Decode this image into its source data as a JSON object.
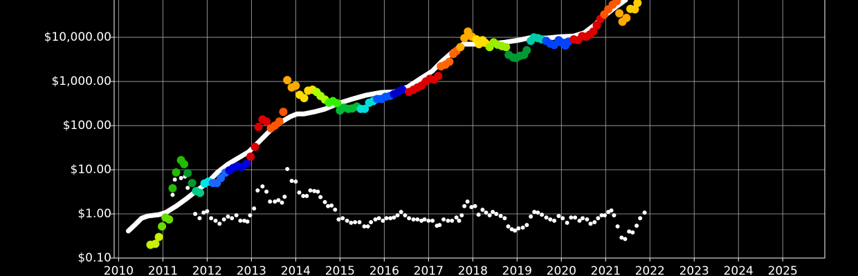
{
  "chart_data": {
    "type": "scatter",
    "background": "#000000",
    "grid": true,
    "log_y": true,
    "xlim": [
      2009.9,
      2025.95
    ],
    "xticks": [
      2010,
      2011,
      2012,
      2013,
      2014,
      2015,
      2016,
      2017,
      2018,
      2019,
      2020,
      2021,
      2022,
      2023,
      2024,
      2025
    ],
    "ylim": [
      0.1,
      70000
    ],
    "yticks": [
      {
        "value": 0.1,
        "label": "$0.10"
      },
      {
        "value": 1,
        "label": "$1.00"
      },
      {
        "value": 10,
        "label": "$10.00"
      },
      {
        "value": 100,
        "label": "$100.00"
      },
      {
        "value": 1000,
        "label": "$1,000.00"
      },
      {
        "value": 10000,
        "label": "$10,000.00"
      }
    ],
    "moving_average": {
      "color": "#ffffff",
      "x": [
        2010.22,
        2010.38,
        2010.52,
        2010.67,
        2010.91,
        2011.06,
        2011.3,
        2011.53,
        2011.77,
        2012.0,
        2012.23,
        2012.47,
        2012.7,
        2012.94,
        2013.17,
        2013.41,
        2013.64,
        2013.88,
        2014.03,
        2014.19,
        2014.42,
        2014.66,
        2014.97,
        2015.28,
        2015.59,
        2015.91,
        2016.22,
        2016.53,
        2016.84,
        2017.08,
        2017.31,
        2017.55,
        2017.78,
        2018.09,
        2018.41,
        2018.72,
        2019.03,
        2019.34,
        2019.66,
        2019.97,
        2020.28,
        2020.52,
        2020.75,
        2020.98,
        2021.22,
        2021.45
      ],
      "values": [
        0.41,
        0.58,
        0.8,
        0.9,
        0.96,
        1.07,
        1.5,
        2.2,
        3.4,
        5,
        8.7,
        13.4,
        18.4,
        25.5,
        43,
        75,
        115,
        160,
        184,
        184,
        205,
        237,
        320,
        400,
        490,
        560,
        580,
        750,
        1200,
        1700,
        2900,
        4700,
        7000,
        7000,
        7200,
        7700,
        8600,
        10000,
        9600,
        10300,
        10700,
        12700,
        19000,
        31000,
        48000,
        70000
      ]
    },
    "ratio": {
      "color": "#ffffff",
      "x": [
        2011.22,
        2011.27,
        2011.41,
        2011.5,
        2011.56,
        2011.73,
        2011.83,
        2011.92,
        2012.0,
        2012.09,
        2012.19,
        2012.28,
        2012.38,
        2012.47,
        2012.56,
        2012.66,
        2012.75,
        2012.84,
        2012.91,
        2012.97,
        2013.06,
        2013.14,
        2013.25,
        2013.34,
        2013.42,
        2013.53,
        2013.61,
        2013.69,
        2013.75,
        2013.81,
        2013.91,
        2014.0,
        2014.08,
        2014.17,
        2014.25,
        2014.33,
        2014.42,
        2014.5,
        2014.56,
        2014.66,
        2014.73,
        2014.81,
        2014.89,
        2014.97,
        2015.06,
        2015.16,
        2015.25,
        2015.34,
        2015.44,
        2015.55,
        2015.63,
        2015.7,
        2015.8,
        2015.88,
        2015.97,
        2016.05,
        2016.14,
        2016.22,
        2016.3,
        2016.38,
        2016.47,
        2016.56,
        2016.66,
        2016.75,
        2016.84,
        2016.91,
        2017.0,
        2017.09,
        2017.19,
        2017.25,
        2017.34,
        2017.44,
        2017.53,
        2017.63,
        2017.69,
        2017.75,
        2017.81,
        2017.88,
        2017.97,
        2018.05,
        2018.13,
        2018.22,
        2018.3,
        2018.38,
        2018.45,
        2018.53,
        2018.63,
        2018.72,
        2018.8,
        2018.88,
        2018.95,
        2019.03,
        2019.13,
        2019.22,
        2019.31,
        2019.39,
        2019.47,
        2019.56,
        2019.66,
        2019.75,
        2019.84,
        2019.94,
        2020.03,
        2020.13,
        2020.22,
        2020.31,
        2020.41,
        2020.48,
        2020.58,
        2020.66,
        2020.75,
        2020.83,
        2020.91,
        2020.98,
        2021.06,
        2021.13,
        2021.19,
        2021.27,
        2021.36,
        2021.44,
        2021.53,
        2021.61,
        2021.7,
        2021.78,
        2021.88
      ],
      "values": [
        2.7,
        6,
        6.5,
        7,
        3.9,
        1,
        0.8,
        1.07,
        1.15,
        0.8,
        0.7,
        0.6,
        0.75,
        0.87,
        0.8,
        0.93,
        0.7,
        0.7,
        0.67,
        0.93,
        1.33,
        3.4,
        4.2,
        3.2,
        1.9,
        1.9,
        2.05,
        1.8,
        2.45,
        10.4,
        5.6,
        5.4,
        3.05,
        2.55,
        2.55,
        3.4,
        3.3,
        3.2,
        2.4,
        1.85,
        1.5,
        1.55,
        1.25,
        0.75,
        0.8,
        0.7,
        0.63,
        0.65,
        0.65,
        0.52,
        0.52,
        0.65,
        0.75,
        0.8,
        0.7,
        0.8,
        0.8,
        0.83,
        0.93,
        1.11,
        0.93,
        0.8,
        0.75,
        0.75,
        0.7,
        0.75,
        0.7,
        0.7,
        0.54,
        0.56,
        0.75,
        0.7,
        0.7,
        0.83,
        0.7,
        0.93,
        1.5,
        1.9,
        1.43,
        1.5,
        0.96,
        1.24,
        1.07,
        0.93,
        1.11,
        1.0,
        0.9,
        0.8,
        0.52,
        0.45,
        0.42,
        0.47,
        0.49,
        0.56,
        0.87,
        1.11,
        1.07,
        0.96,
        0.83,
        0.75,
        0.7,
        0.9,
        0.8,
        0.63,
        0.83,
        0.83,
        0.7,
        0.8,
        0.75,
        0.6,
        0.65,
        0.8,
        0.93,
        0.93,
        1.11,
        1.2,
        0.93,
        0.52,
        0.29,
        0.27,
        0.4,
        0.38,
        0.54,
        0.8,
        1.07
      ]
    },
    "price_series": [
      {
        "color": "#c8f000",
        "x": [
          2010.72,
          2010.83,
          2010.91
        ],
        "values": [
          0.2,
          0.21,
          0.3
        ]
      },
      {
        "color": "#66dd00",
        "x": [
          2010.98,
          2011.06,
          2011.14
        ],
        "values": [
          0.52,
          0.83,
          0.75
        ]
      },
      {
        "color": "#22bb00",
        "x": [
          2011.22,
          2011.3,
          2011.41,
          2011.48
        ],
        "values": [
          3.8,
          8.7,
          16.5,
          13.4
        ]
      },
      {
        "color": "#00992a",
        "x": [
          2011.56,
          2011.66
        ],
        "values": [
          8.4,
          5
        ]
      },
      {
        "color": "#00cc88",
        "x": [
          2011.75,
          2011.84
        ],
        "values": [
          3.3,
          3
        ]
      },
      {
        "color": "#00e5e5",
        "x": [
          2011.94,
          2012.03
        ],
        "values": [
          4.9,
          5.4
        ]
      },
      {
        "color": "#1a66ff",
        "x": [
          2012.13,
          2012.22,
          2012.31,
          2012.41
        ],
        "values": [
          5,
          5,
          6.5,
          8.6
        ]
      },
      {
        "color": "#0000e0",
        "x": [
          2012.5,
          2012.59,
          2012.69,
          2012.78,
          2012.89
        ],
        "values": [
          9.7,
          11,
          12,
          11.6,
          13.8
        ]
      },
      {
        "color": "#dd0000",
        "x": [
          2012.98,
          2013.08,
          2013.16,
          2013.25,
          2013.34
        ],
        "values": [
          19.8,
          33,
          93,
          138,
          124
        ]
      },
      {
        "color": "#ff5500",
        "x": [
          2013.44,
          2013.53,
          2013.63,
          2013.72
        ],
        "values": [
          87,
          100,
          124,
          205
        ]
      },
      {
        "color": "#ffaa00",
        "x": [
          2013.81,
          2013.91,
          2014.0
        ],
        "values": [
          1070,
          730,
          800
        ]
      },
      {
        "color": "#ffdd00",
        "x": [
          2014.09,
          2014.19,
          2014.28,
          2014.38
        ],
        "values": [
          500,
          420,
          620,
          650
        ]
      },
      {
        "color": "#aaff00",
        "x": [
          2014.47,
          2014.56,
          2014.66
        ],
        "values": [
          580,
          470,
          390
        ]
      },
      {
        "color": "#33ee00",
        "x": [
          2014.75,
          2014.84,
          2014.94
        ],
        "values": [
          330,
          360,
          320
        ]
      },
      {
        "color": "#00bb33",
        "x": [
          2015.0,
          2015.09,
          2015.19,
          2015.28,
          2015.38
        ],
        "values": [
          220,
          255,
          240,
          245,
          270
        ]
      },
      {
        "color": "#00dddd",
        "x": [
          2015.47,
          2015.56,
          2015.66,
          2015.75
        ],
        "values": [
          240,
          240,
          330,
          360
        ]
      },
      {
        "color": "#0055ff",
        "x": [
          2015.84,
          2015.94,
          2016.03,
          2016.13
        ],
        "values": [
          400,
          400,
          450,
          470
        ]
      },
      {
        "color": "#0000cc",
        "x": [
          2016.22,
          2016.31,
          2016.41
        ],
        "values": [
          520,
          580,
          650
        ]
      },
      {
        "color": "#dd0000",
        "x": [
          2016.56,
          2016.66,
          2016.75,
          2016.84,
          2016.94,
          2017.03,
          2017.13,
          2017.22
        ],
        "values": [
          580,
          650,
          730,
          800,
          1000,
          1150,
          1100,
          1330
        ]
      },
      {
        "color": "#ff6600",
        "x": [
          2017.28,
          2017.38,
          2017.47,
          2017.56,
          2017.63
        ],
        "values": [
          2200,
          2400,
          2800,
          4200,
          4900
        ]
      },
      {
        "color": "#ffaa00",
        "x": [
          2017.72,
          2017.81,
          2017.89,
          2017.98
        ],
        "values": [
          6000,
          9600,
          13500,
          10300
        ]
      },
      {
        "color": "#ffdd00",
        "x": [
          2018.08,
          2018.14,
          2018.22,
          2018.28
        ],
        "values": [
          9000,
          7000,
          8600,
          7500
        ]
      },
      {
        "color": "#99ee00",
        "x": [
          2018.38,
          2018.47,
          2018.56,
          2018.66,
          2018.75
        ],
        "values": [
          6000,
          7700,
          6800,
          6300,
          6000
        ]
      },
      {
        "color": "#009933",
        "x": [
          2018.81,
          2018.91,
          2018.98,
          2019.06,
          2019.16,
          2019.22
        ],
        "values": [
          4000,
          3500,
          3400,
          3800,
          4000,
          5100
        ]
      },
      {
        "color": "#00ccaa",
        "x": [
          2019.31,
          2019.38,
          2019.47,
          2019.56
        ],
        "values": [
          8300,
          10000,
          9600,
          9000
        ]
      },
      {
        "color": "#0044ff",
        "x": [
          2019.66,
          2019.75,
          2019.84,
          2019.94,
          2020.0,
          2020.09,
          2020.16
        ],
        "values": [
          8300,
          7200,
          6700,
          8600,
          7700,
          6500,
          8000
        ]
      },
      {
        "color": "#dd0000",
        "x": [
          2020.28,
          2020.38,
          2020.47,
          2020.56,
          2020.64,
          2020.72,
          2020.8,
          2020.88
        ],
        "values": [
          9000,
          8600,
          10700,
          10300,
          11500,
          13500,
          18700,
          26000
        ]
      },
      {
        "color": "#ff5500",
        "x": [
          2020.97,
          2021.06,
          2021.16,
          2021.25
        ],
        "values": [
          33000,
          43000,
          55000,
          66000
        ]
      },
      {
        "color": "#ffaa00",
        "x": [
          2021.31,
          2021.38,
          2021.47
        ],
        "values": [
          35000,
          22500,
          27500
        ]
      },
      {
        "color": "#ffcc00",
        "x": [
          2021.56,
          2021.66,
          2021.72
        ],
        "values": [
          44000,
          43000,
          60000
        ]
      }
    ]
  }
}
